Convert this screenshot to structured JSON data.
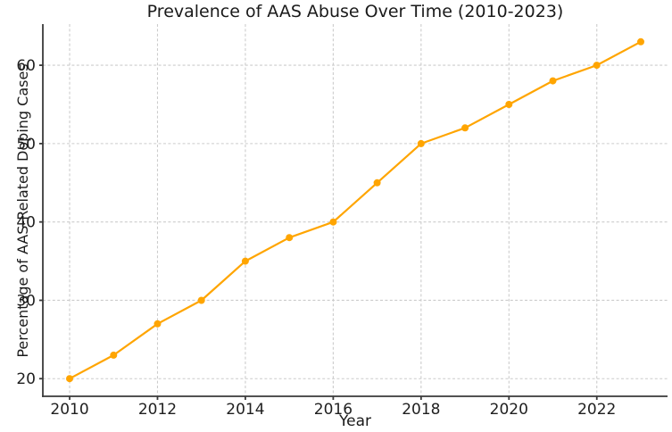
{
  "chart_data": {
    "type": "line",
    "title": "Prevalence of AAS Abuse Over Time (2010-2023)",
    "xlabel": "Year",
    "ylabel": "Percentage of AAS-Related Doping Cases",
    "x": [
      2010,
      2011,
      2012,
      2013,
      2014,
      2015,
      2016,
      2017,
      2018,
      2019,
      2020,
      2021,
      2022,
      2023
    ],
    "values": [
      20,
      23,
      27,
      30,
      35,
      38,
      40,
      45,
      50,
      52,
      55,
      58,
      60,
      63
    ],
    "x_ticks": [
      2010,
      2012,
      2014,
      2016,
      2018,
      2020,
      2022
    ],
    "y_ticks": [
      20,
      30,
      40,
      50,
      60
    ],
    "xlim": [
      2009.39,
      2023.61
    ],
    "ylim": [
      17.75,
      65.25
    ],
    "grid": true,
    "grid_style": "dashed",
    "legend": false,
    "colors": {
      "line": "#FFA500",
      "marker": "#FFA500",
      "grid": "#cccccc",
      "spine": "#3a3a3a",
      "text": "#1f1f1f",
      "background": "#ffffff"
    }
  }
}
